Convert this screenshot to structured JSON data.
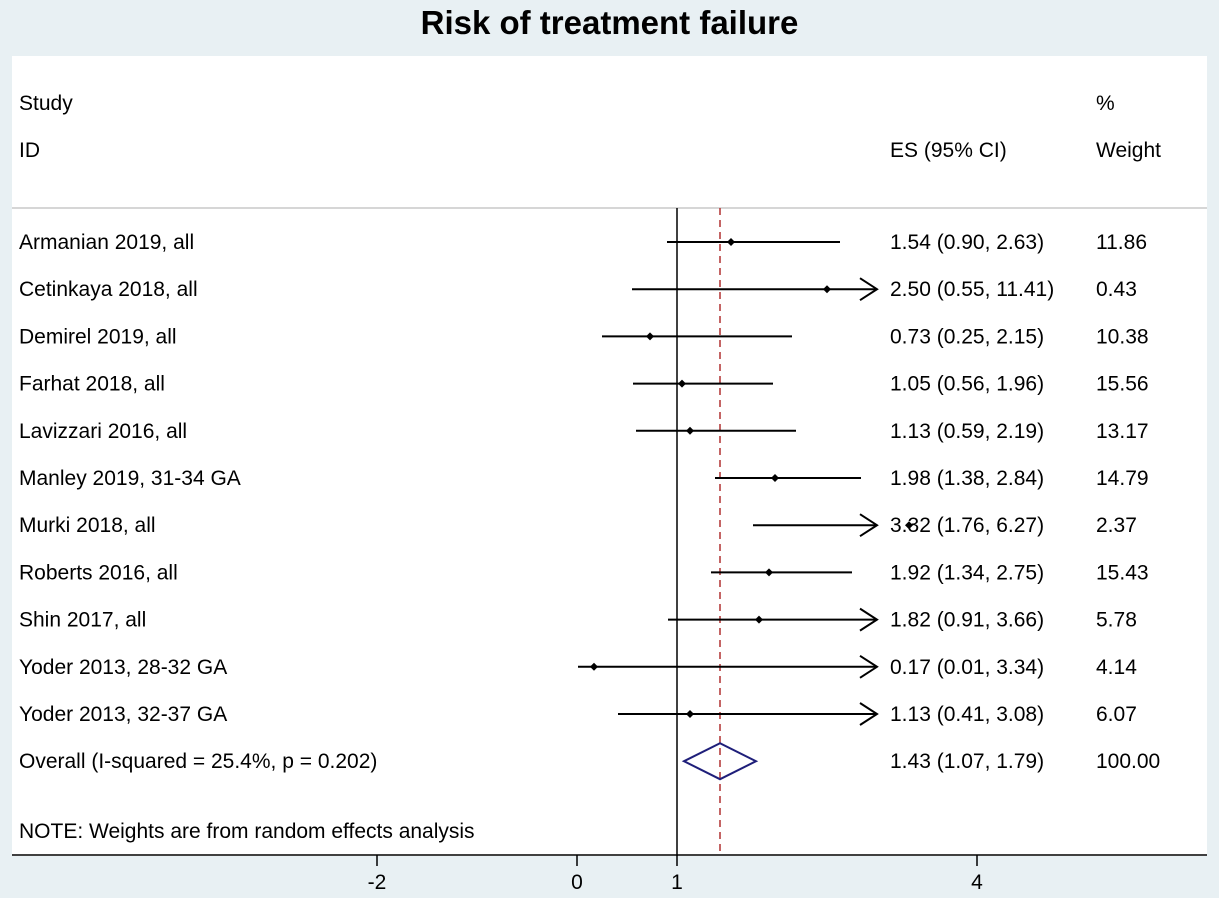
{
  "chart_data": {
    "type": "forest",
    "title": "Risk of treatment failure",
    "headers": {
      "study_line1": "Study",
      "study_line2": "ID",
      "es": "ES (95% CI)",
      "weight_line1": "%",
      "weight_line2": "Weight"
    },
    "studies": [
      {
        "id": "Armanian 2019, all",
        "es": 1.54,
        "lo": 0.9,
        "hi": 2.63,
        "es_text": "1.54 (0.90, 2.63)",
        "weight": "11.86"
      },
      {
        "id": "Cetinkaya 2018, all",
        "es": 2.5,
        "lo": 0.55,
        "hi": 11.41,
        "es_text": "2.50 (0.55, 11.41)",
        "weight": "0.43"
      },
      {
        "id": "Demirel  2019, all",
        "es": 0.73,
        "lo": 0.25,
        "hi": 2.15,
        "es_text": "0.73 (0.25, 2.15)",
        "weight": "10.38"
      },
      {
        "id": "Farhat 2018, all",
        "es": 1.05,
        "lo": 0.56,
        "hi": 1.96,
        "es_text": "1.05 (0.56, 1.96)",
        "weight": "15.56"
      },
      {
        "id": "Lavizzari  2016, all",
        "es": 1.13,
        "lo": 0.59,
        "hi": 2.19,
        "es_text": "1.13 (0.59, 2.19)",
        "weight": "13.17"
      },
      {
        "id": "Manley  2019, 31-34 GA",
        "es": 1.98,
        "lo": 1.38,
        "hi": 2.84,
        "es_text": "1.98 (1.38, 2.84)",
        "weight": "14.79"
      },
      {
        "id": "Murki 2018, all",
        "es": 3.32,
        "lo": 1.76,
        "hi": 6.27,
        "es_text": "3.32 (1.76, 6.27)",
        "weight": "2.37"
      },
      {
        "id": "Roberts 2016, all",
        "es": 1.92,
        "lo": 1.34,
        "hi": 2.75,
        "es_text": "1.92 (1.34, 2.75)",
        "weight": "15.43"
      },
      {
        "id": "Shin  2017, all",
        "es": 1.82,
        "lo": 0.91,
        "hi": 3.66,
        "es_text": "1.82 (0.91, 3.66)",
        "weight": "5.78"
      },
      {
        "id": "Yoder  2013, 28-32 GA",
        "es": 0.17,
        "lo": 0.01,
        "hi": 3.34,
        "es_text": "0.17 (0.01, 3.34)",
        "weight": "4.14"
      },
      {
        "id": "Yoder  2013, 32-37 GA",
        "es": 1.13,
        "lo": 0.41,
        "hi": 3.08,
        "es_text": "1.13 (0.41, 3.08)",
        "weight": "6.07"
      }
    ],
    "overall": {
      "id": "Overall  (I-squared = 25.4%, p = 0.202)",
      "es": 1.43,
      "lo": 1.07,
      "hi": 1.79,
      "es_text": "1.43 (1.07, 1.79)",
      "weight": "100.00"
    },
    "note": "NOTE: Weights are from random effects analysis",
    "x_ticks": [
      {
        "value": -2,
        "label": "-2"
      },
      {
        "value": 0,
        "label": "0"
      },
      {
        "value": 1,
        "label": "1"
      },
      {
        "value": 4,
        "label": "4"
      }
    ],
    "xlim": [
      -2,
      4
    ],
    "null_line": 1,
    "colors": {
      "marker": "#000000",
      "diamond": "#1f1f7a",
      "overall_line": "#b03030"
    }
  }
}
